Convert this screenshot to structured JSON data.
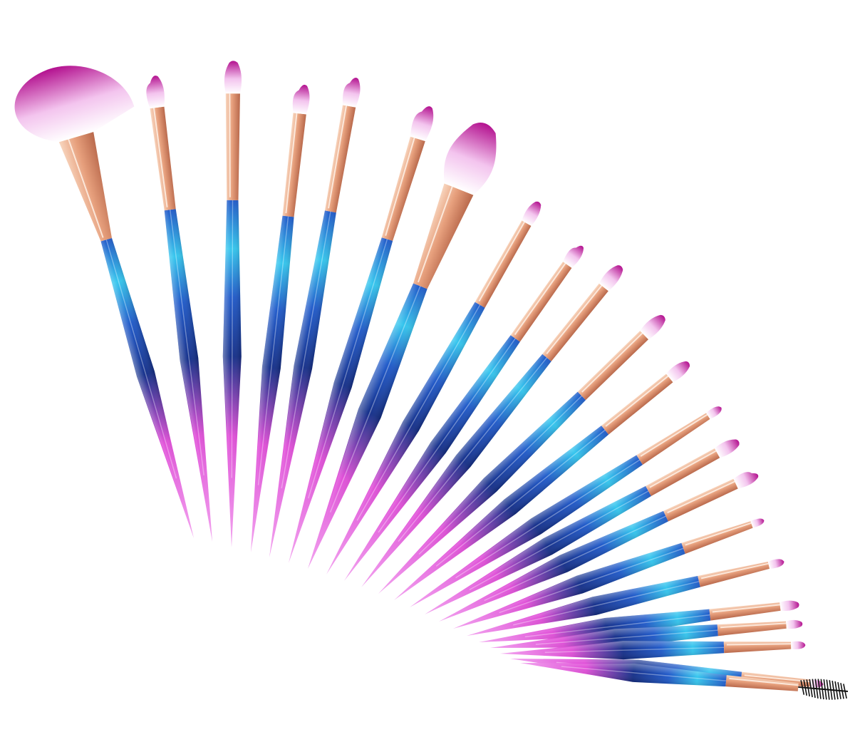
{
  "scene": {
    "subject": "makeup-brush-set",
    "background_color": "#ffffff",
    "brush_count": 22,
    "colors": {
      "handle_top": "#33c6ee",
      "handle_mid": "#1f59c9",
      "handle_deep": "#142f8a",
      "handle_tip": "#e04fd8",
      "handle_tip_light": "#f2a5ef",
      "ferrule_light": "#f8d6bf",
      "ferrule_mid": "#e7a07d",
      "ferrule_dark": "#b8684b",
      "bristle_base": "#ffffff",
      "bristle_mid": "#f3c4ee",
      "bristle_tip": "#b3118f",
      "spoolie": "#111111"
    },
    "brushes": [
      {
        "name": "fan-brush",
        "head": "fan"
      },
      {
        "name": "angled-shader-brush",
        "head": "angled"
      },
      {
        "name": "tapered-blending-brush",
        "head": "dome"
      },
      {
        "name": "angled-crease-brush",
        "head": "angled"
      },
      {
        "name": "angled-contour-brush",
        "head": "angled"
      },
      {
        "name": "flat-shader-brush",
        "head": "angled"
      },
      {
        "name": "large-powder-brush",
        "head": "powder"
      },
      {
        "name": "pencil-brush",
        "head": "dome"
      },
      {
        "name": "angled-detail-brush",
        "head": "angled"
      },
      {
        "name": "smudge-brush",
        "head": "dome"
      },
      {
        "name": "dome-blending-brush",
        "head": "dome"
      },
      {
        "name": "small-shader-brush",
        "head": "dome"
      },
      {
        "name": "pointed-liner-brush",
        "head": "point"
      },
      {
        "name": "blending-detail-brush",
        "head": "dome"
      },
      {
        "name": "flat-definer-brush",
        "head": "angled"
      },
      {
        "name": "fine-liner-brush",
        "head": "point"
      },
      {
        "name": "flat-liner-brush",
        "head": "point"
      },
      {
        "name": "lip-brush",
        "head": "dome"
      },
      {
        "name": "mini-smudge-brush",
        "head": "dome"
      },
      {
        "name": "angled-brow-brush",
        "head": "point"
      },
      {
        "name": "detail-liner-brush",
        "head": "point"
      },
      {
        "name": "spoolie-brush",
        "head": "spoolie"
      }
    ]
  }
}
